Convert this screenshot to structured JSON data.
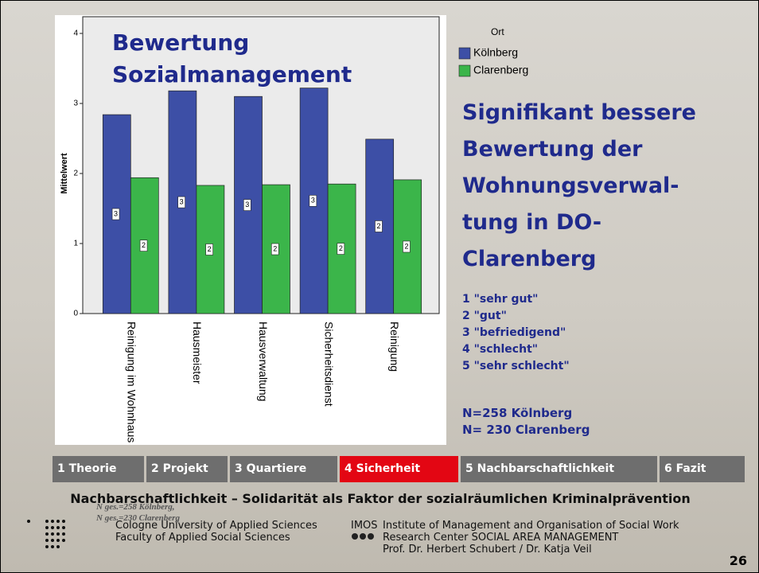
{
  "chart_data": {
    "type": "bar",
    "title": "Bewertung Sozialmanagement",
    "y_label": "Mittelwert",
    "categories": [
      "Reinigung im Wohnhaus",
      "Hausmeister",
      "Hausverwaltung",
      "Sicherheitsdienst",
      "Reinigung"
    ],
    "series": [
      {
        "name": "Kölnberg",
        "color": "#3d4fa6",
        "values": [
          2.84,
          3.18,
          3.1,
          3.22,
          2.49
        ],
        "value_labels": [
          "3",
          "3",
          "3",
          "3",
          "2"
        ]
      },
      {
        "name": "Clarenberg",
        "color": "#3bb54a",
        "values": [
          1.94,
          1.83,
          1.84,
          1.85,
          1.91
        ],
        "value_labels": [
          "2",
          "2",
          "2",
          "2",
          "2"
        ]
      }
    ],
    "legend_title": "Ort",
    "ylim": [
      0,
      4
    ],
    "yticks": [
      0,
      1,
      2,
      3,
      4
    ]
  },
  "heading": [
    "Signifikant bessere",
    "Bewertung der",
    "Wohnungsverwal-",
    "tung in DO-",
    "Clarenberg"
  ],
  "scale": [
    "1 \"sehr gut\"",
    "2 \"gut\"",
    "3 \"befriedigend\"",
    "4 \"schlecht\"",
    "5 \"sehr schlecht\""
  ],
  "sample": [
    "N=258 Kölnberg",
    "N= 230 Clarenberg"
  ],
  "nav": {
    "tabs": [
      "1 Theorie",
      "2 Projekt",
      "3 Quartiere",
      "4  Sicherheit",
      "5  Nachbarschaftlichkeit",
      "6 Fazit"
    ],
    "active": 3
  },
  "footer": {
    "title": "Nachbarschaftlichkeit – Solidarität als Faktor der sozialräumlichen Kriminalprävention",
    "notes": [
      "N ges.=258 Kölnberg,",
      "N ges.=230 Clarenberg"
    ],
    "university": [
      "Cologne University of Applied Sciences",
      "Faculty of Applied Social Sciences"
    ],
    "imos": "IMOS",
    "institute": [
      "Institute of Management and Organisation of Social Work",
      "Research Center   SOCIAL AREA  MANAGEMENT",
      "Prof. Dr. Herbert Schubert / Dr. Katja Veil"
    ],
    "page": "26"
  }
}
